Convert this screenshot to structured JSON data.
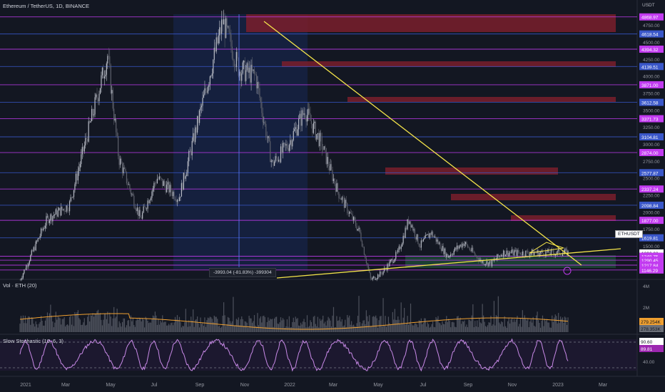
{
  "header": {
    "title": "Ethereum / TetherUS, 1D, BINANCE",
    "currency": "USDT"
  },
  "symbol_tag": "ETHUSDT",
  "measure_tooltip": "-3993.04 (-81.83%) -399304",
  "panels": {
    "volume_title": "Vol · ETH (20)",
    "stoch_title": "Slow Stochastic (10, 6, 3)"
  },
  "colors": {
    "background": "#131722",
    "purple_line": "#c23bf0",
    "blue_line": "#3a57c9",
    "red_zone": "#7a1f2b",
    "green_zone": "#1f4d3a",
    "trendline": "#f5e54a",
    "volume_ma": "#f0a030",
    "stoch_line": "#c98ae8"
  },
  "price_axis": {
    "plain_labels": [
      "4750.00",
      "4500.00",
      "4250.00",
      "4000.00",
      "3750.00",
      "3500.00",
      "3250.00",
      "3000.00",
      "2750.00",
      "2500.00",
      "2250.00",
      "2000.00",
      "1750.00",
      "1500.00"
    ],
    "level_labels": [
      {
        "text": "4868.97",
        "color": "#c23bf0"
      },
      {
        "text": "4618.54",
        "color": "#3a57c9"
      },
      {
        "text": "4394.32",
        "color": "#c23bf0"
      },
      {
        "text": "4139.51",
        "color": "#3a57c9"
      },
      {
        "text": "3871.00",
        "color": "#c23bf0"
      },
      {
        "text": "3612.58",
        "color": "#3a57c9"
      },
      {
        "text": "3371.73",
        "color": "#c23bf0"
      },
      {
        "text": "3104.81",
        "color": "#3a57c9"
      },
      {
        "text": "2874.00",
        "color": "#c23bf0"
      },
      {
        "text": "2577.87",
        "color": "#3a57c9"
      },
      {
        "text": "2337.24",
        "color": "#c23bf0"
      },
      {
        "text": "2098.84",
        "color": "#3a57c9"
      },
      {
        "text": "1877.00",
        "color": "#c23bf0"
      },
      {
        "text": "1619.81",
        "color": "#3a57c9"
      },
      {
        "text": "1396.68",
        "color": "#ffffff"
      },
      {
        "text": "15:36:11",
        "color": "#2a2e39"
      },
      {
        "text": "1348.75",
        "color": "#c23bf0"
      },
      {
        "text": "1290.45",
        "color": "#c23bf0"
      },
      {
        "text": "1217.84",
        "color": "#c23bf0"
      },
      {
        "text": "1146.29",
        "color": "#c23bf0"
      }
    ]
  },
  "volume_axis": {
    "labels": [
      "4M",
      "2M"
    ],
    "badges": [
      {
        "text": "279.254K",
        "color": "#f0a030"
      },
      {
        "text": "278.353K",
        "color": "#6b6f78"
      }
    ]
  },
  "stoch_axis": {
    "labels": [
      "40.00"
    ],
    "badges": [
      {
        "text": "90.60",
        "color": "#ffffff"
      },
      {
        "text": "89.81",
        "color": "#9c27b0"
      }
    ]
  },
  "time_axis": [
    "2021",
    "Mar",
    "May",
    "Jul",
    "Sep",
    "Nov",
    "2022",
    "Mar",
    "May",
    "Jul",
    "Sep",
    "Nov",
    "2023",
    "Mar"
  ],
  "chart_data": {
    "type": "candlestick",
    "symbol": "ETHUSDT",
    "interval": "1D",
    "ylim": [
      1050,
      4950
    ],
    "series": [
      {
        "name": "ETHUSDT",
        "values": [
          [
            0,
            1000
          ],
          [
            0.05,
            1900
          ],
          [
            0.09,
            2100
          ],
          [
            0.16,
            4300
          ],
          [
            0.18,
            2800
          ],
          [
            0.22,
            1900
          ],
          [
            0.25,
            2500
          ],
          [
            0.29,
            2200
          ],
          [
            0.33,
            3500
          ],
          [
            0.37,
            4800
          ],
          [
            0.4,
            4100
          ],
          [
            0.43,
            4000
          ],
          [
            0.46,
            2700
          ],
          [
            0.49,
            3000
          ],
          [
            0.52,
            3500
          ],
          [
            0.55,
            3000
          ],
          [
            0.58,
            2300
          ],
          [
            0.62,
            1700
          ],
          [
            0.64,
            1000
          ],
          [
            0.66,
            1100
          ],
          [
            0.69,
            1400
          ],
          [
            0.71,
            1900
          ],
          [
            0.73,
            1500
          ],
          [
            0.75,
            1700
          ],
          [
            0.78,
            1350
          ],
          [
            0.81,
            1550
          ],
          [
            0.84,
            1280
          ],
          [
            0.86,
            1240
          ],
          [
            0.88,
            1400
          ]
        ]
      }
    ],
    "last_price": 1396.68,
    "last_price_label": "1396.68",
    "stoch_last": [
      90.6,
      89.81
    ],
    "volume_last": [
      "279.254K",
      "278.353K"
    ]
  }
}
